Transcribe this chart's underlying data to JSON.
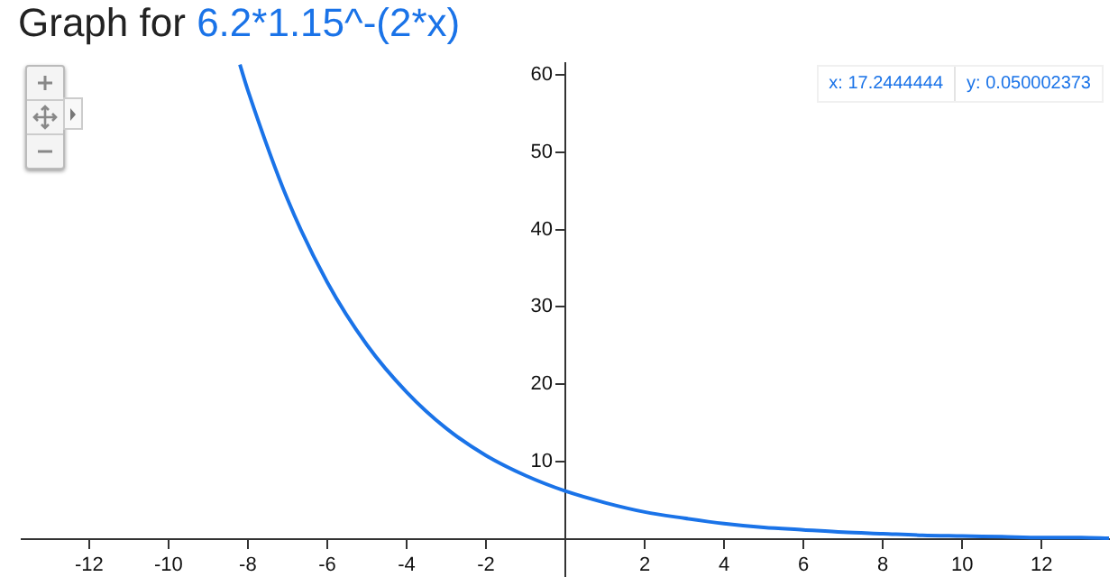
{
  "chart_data": {
    "type": "line",
    "title": "Graph for",
    "subtitle": "6.2*1.15^-(2*x)",
    "x": [
      -8.2,
      -8,
      -7,
      -6,
      -5,
      -4,
      -3,
      -2,
      -1,
      0,
      1,
      2,
      3,
      4,
      5,
      6,
      7,
      8,
      9,
      10,
      11,
      12,
      13,
      13.7
    ],
    "series": [
      {
        "color": "#1a73e8",
        "values": [
          61.3,
          58.0,
          43.9,
          33.2,
          25.1,
          19.0,
          14.3,
          10.8,
          8.2,
          6.2,
          4.7,
          3.5,
          2.7,
          2.0,
          1.5,
          1.2,
          0.9,
          0.7,
          0.5,
          0.4,
          0.3,
          0.2,
          0.2,
          0.1
        ]
      }
    ],
    "xlim": [
      -13.7,
      13.7
    ],
    "ylim": [
      -4.9,
      61.5
    ],
    "xticks": [
      -12,
      -10,
      -8,
      -6,
      -4,
      -2,
      2,
      4,
      6,
      8,
      10,
      12
    ],
    "yticks": [
      10,
      20,
      30,
      40,
      50,
      60
    ],
    "annotations": [
      "x: 17.2444444",
      "y: 0.050002373"
    ],
    "grid": false,
    "legend": false,
    "marker": "none",
    "line_style": "solid"
  }
}
